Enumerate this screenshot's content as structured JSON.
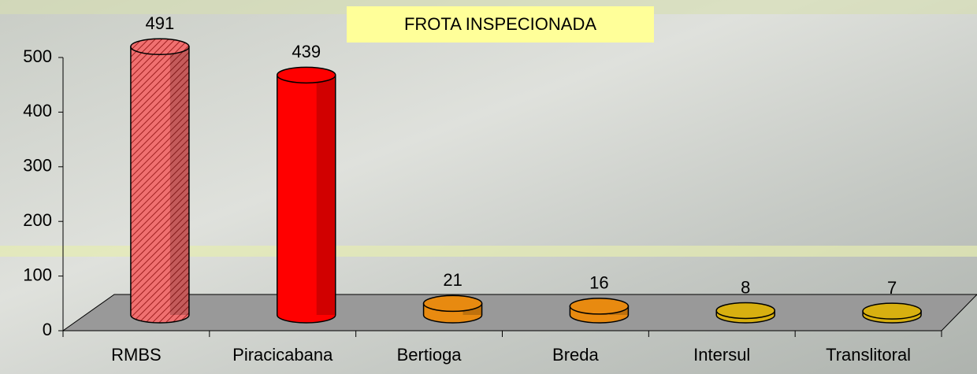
{
  "chart_data": {
    "type": "bar3d",
    "title": "FROTA INSPECIONADA",
    "categories": [
      "RMBS",
      "Piracicabana",
      "Bertioga",
      "Breda",
      "Intersul",
      "Translitoral"
    ],
    "values": [
      491,
      439,
      21,
      16,
      8,
      7
    ],
    "colors": [
      "#e8504a",
      "#ff0000",
      "#e88a10",
      "#e88a10",
      "#d8b010",
      "#d8b010"
    ],
    "hatch": [
      true,
      false,
      false,
      false,
      false,
      false
    ],
    "ylim": [
      0,
      500
    ],
    "yticks": [
      0,
      100,
      200,
      300,
      400,
      500
    ],
    "grid": false
  }
}
